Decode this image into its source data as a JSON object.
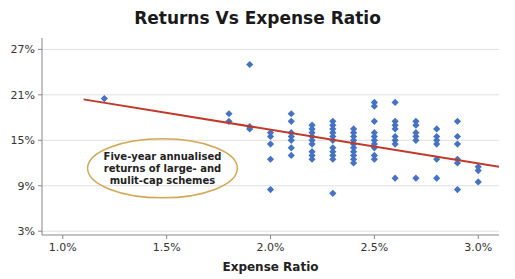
{
  "chart_data": {
    "type": "scatter",
    "title": "Returns Vs Expense Ratio",
    "x_label": "Expense Ratio",
    "xlim": [
      0.009,
      0.031
    ],
    "ylim": [
      0.025,
      0.285
    ],
    "xticks": [
      {
        "value": 0.01,
        "label": "1.0%"
      },
      {
        "value": 0.015,
        "label": "1.5%"
      },
      {
        "value": 0.02,
        "label": "2.0%"
      },
      {
        "value": 0.025,
        "label": "2.5%"
      },
      {
        "value": 0.03,
        "label": "3.0%"
      }
    ],
    "yticks": [
      {
        "value": 0.03,
        "label": "3%"
      },
      {
        "value": 0.09,
        "label": "9%"
      },
      {
        "value": 0.15,
        "label": "15%"
      },
      {
        "value": 0.21,
        "label": "21%"
      },
      {
        "value": 0.27,
        "label": "27%"
      }
    ],
    "grid": true,
    "series": [
      {
        "type": "scatter",
        "color": "#4472C4",
        "marker": "diamond",
        "x": [
          0.012,
          0.018,
          0.018,
          0.019,
          0.019,
          0.019,
          0.02,
          0.02,
          0.02,
          0.02,
          0.02,
          0.021,
          0.021,
          0.021,
          0.021,
          0.021,
          0.021,
          0.021,
          0.022,
          0.022,
          0.022,
          0.022,
          0.022,
          0.022,
          0.022,
          0.022,
          0.022,
          0.023,
          0.023,
          0.023,
          0.023,
          0.023,
          0.023,
          0.023,
          0.023,
          0.023,
          0.023,
          0.023,
          0.024,
          0.024,
          0.024,
          0.024,
          0.024,
          0.024,
          0.024,
          0.024,
          0.024,
          0.024,
          0.025,
          0.025,
          0.025,
          0.025,
          0.025,
          0.025,
          0.025,
          0.025,
          0.025,
          0.025,
          0.026,
          0.026,
          0.026,
          0.026,
          0.026,
          0.026,
          0.026,
          0.026,
          0.027,
          0.027,
          0.027,
          0.027,
          0.027,
          0.027,
          0.028,
          0.028,
          0.028,
          0.028,
          0.028,
          0.028,
          0.029,
          0.029,
          0.029,
          0.029,
          0.029,
          0.029,
          0.03,
          0.03,
          0.03
        ],
        "values": [
          0.205,
          0.185,
          0.175,
          0.168,
          0.165,
          0.25,
          0.16,
          0.155,
          0.145,
          0.125,
          0.085,
          0.185,
          0.175,
          0.16,
          0.155,
          0.15,
          0.14,
          0.13,
          0.17,
          0.165,
          0.16,
          0.155,
          0.15,
          0.145,
          0.135,
          0.13,
          0.125,
          0.175,
          0.17,
          0.165,
          0.16,
          0.155,
          0.15,
          0.14,
          0.135,
          0.13,
          0.125,
          0.08,
          0.165,
          0.16,
          0.155,
          0.15,
          0.145,
          0.14,
          0.135,
          0.13,
          0.125,
          0.12,
          0.2,
          0.195,
          0.175,
          0.16,
          0.155,
          0.15,
          0.145,
          0.14,
          0.13,
          0.125,
          0.2,
          0.175,
          0.17,
          0.165,
          0.155,
          0.15,
          0.145,
          0.1,
          0.175,
          0.17,
          0.16,
          0.155,
          0.15,
          0.1,
          0.165,
          0.155,
          0.15,
          0.145,
          0.125,
          0.1,
          0.175,
          0.155,
          0.145,
          0.125,
          0.12,
          0.085,
          0.115,
          0.11,
          0.095
        ]
      },
      {
        "type": "line",
        "color": "#C0392B",
        "line_style": "solid",
        "x": [
          0.011,
          0.031
        ],
        "values": [
          0.204,
          0.115
        ]
      }
    ],
    "annotations": [
      {
        "text": "Five-year annualised\nreturns of large- and\nmulit-cap schemes",
        "x": 0.0148,
        "y": 0.113,
        "color": "#D4A853"
      }
    ]
  }
}
